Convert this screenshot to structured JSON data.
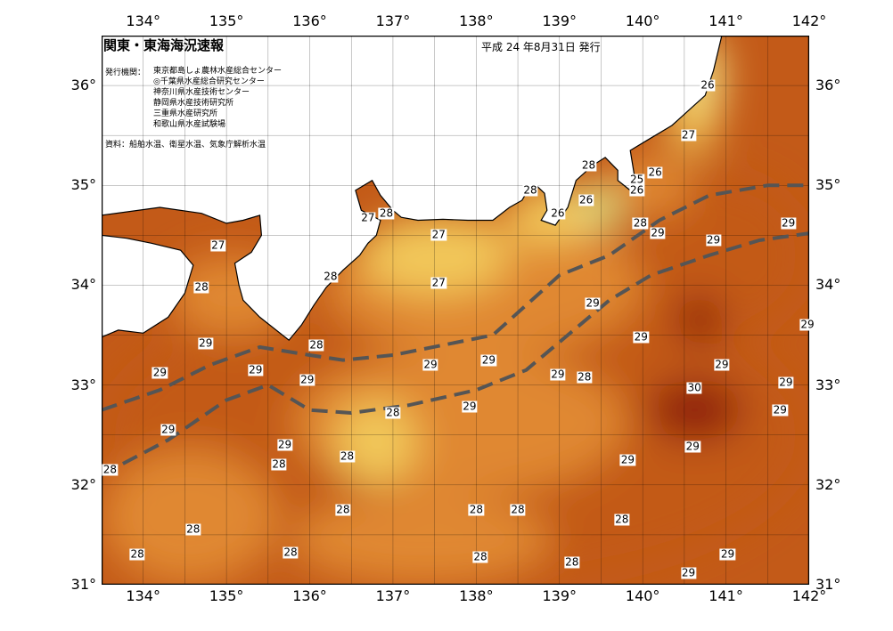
{
  "title": "関東・東海海況速報",
  "issue_date": "平成 24 年8月31日 発行",
  "issuer_label": "発行機関：",
  "issuers": [
    "東京都島しょ農林水産総合センター",
    "◎千葉県水産総合研究センター",
    "神奈川県水産技術センター",
    "静岡県水産技術研究所",
    "三重県水産研究所",
    "和歌山県水産試験場"
  ],
  "sources": "資料：船舶水温、衛星水温、気象庁解析水温",
  "axes": {
    "lon_min": 133.5,
    "lon_max": 142.0,
    "lat_min": 31.0,
    "lat_max": 36.5,
    "lon_ticks": [
      {
        "value": 134,
        "label": "134°"
      },
      {
        "value": 135,
        "label": "135°"
      },
      {
        "value": 136,
        "label": "136°"
      },
      {
        "value": 137,
        "label": "137°"
      },
      {
        "value": 138,
        "label": "138°"
      },
      {
        "value": 139,
        "label": "139°"
      },
      {
        "value": 140,
        "label": "140°"
      },
      {
        "value": 141,
        "label": "141°"
      },
      {
        "value": 142,
        "label": "142°"
      }
    ],
    "lat_ticks": [
      {
        "value": 31,
        "label": "31°"
      },
      {
        "value": 32,
        "label": "32°"
      },
      {
        "value": 33,
        "label": "33°"
      },
      {
        "value": 34,
        "label": "34°"
      },
      {
        "value": 35,
        "label": "35°"
      },
      {
        "value": 36,
        "label": "36°"
      }
    ],
    "grid_step_deg": 0.5
  },
  "colors": {
    "land": "#ffffff",
    "t25": "#a8f08a",
    "t26": "#f6f090",
    "t27": "#f2c85a",
    "t28": "#e08830",
    "t29": "#c35a18",
    "t30": "#8e1a08",
    "current_axis": "#555555"
  },
  "coastline_lonlat": [
    [
      133.5,
      33.48
    ],
    [
      133.7,
      33.55
    ],
    [
      134.0,
      33.52
    ],
    [
      134.3,
      33.68
    ],
    [
      134.5,
      33.92
    ],
    [
      134.6,
      34.2
    ],
    [
      134.45,
      34.35
    ],
    [
      134.1,
      34.42
    ],
    [
      133.8,
      34.47
    ],
    [
      133.5,
      34.5
    ],
    [
      133.5,
      34.7
    ],
    [
      134.2,
      34.78
    ],
    [
      134.7,
      34.72
    ],
    [
      135.0,
      34.62
    ],
    [
      135.2,
      34.65
    ],
    [
      135.4,
      34.7
    ],
    [
      135.42,
      34.5
    ],
    [
      135.3,
      34.33
    ],
    [
      135.1,
      34.22
    ],
    [
      135.15,
      34.0
    ],
    [
      135.2,
      33.85
    ],
    [
      135.4,
      33.68
    ],
    [
      135.75,
      33.45
    ],
    [
      135.9,
      33.6
    ],
    [
      136.05,
      33.8
    ],
    [
      136.2,
      33.98
    ],
    [
      136.4,
      34.15
    ],
    [
      136.6,
      34.3
    ],
    [
      136.7,
      34.42
    ],
    [
      136.8,
      34.5
    ],
    [
      136.85,
      34.65
    ],
    [
      136.62,
      34.75
    ],
    [
      136.55,
      34.95
    ],
    [
      136.75,
      35.05
    ],
    [
      136.85,
      34.9
    ],
    [
      137.0,
      34.75
    ],
    [
      137.1,
      34.68
    ],
    [
      137.3,
      34.65
    ],
    [
      137.6,
      34.66
    ],
    [
      137.9,
      34.65
    ],
    [
      138.2,
      34.65
    ],
    [
      138.4,
      34.78
    ],
    [
      138.55,
      34.85
    ],
    [
      138.62,
      34.95
    ],
    [
      138.72,
      35.0
    ],
    [
      138.82,
      34.92
    ],
    [
      138.85,
      34.75
    ],
    [
      138.78,
      34.65
    ],
    [
      138.95,
      34.6
    ],
    [
      139.1,
      34.78
    ],
    [
      139.2,
      35.05
    ],
    [
      139.4,
      35.2
    ],
    [
      139.55,
      35.28
    ],
    [
      139.7,
      35.15
    ],
    [
      139.7,
      35.05
    ],
    [
      139.85,
      34.95
    ],
    [
      139.9,
      35.1
    ],
    [
      139.85,
      35.35
    ],
    [
      140.05,
      35.45
    ],
    [
      140.35,
      35.6
    ],
    [
      140.55,
      35.75
    ],
    [
      140.75,
      35.9
    ],
    [
      140.85,
      36.15
    ],
    [
      140.95,
      36.5
    ]
  ],
  "current_axes_lonlat": [
    [
      [
        133.5,
        32.75
      ],
      [
        134.2,
        32.95
      ],
      [
        134.8,
        33.2
      ],
      [
        135.4,
        33.38
      ],
      [
        136.0,
        33.3
      ],
      [
        136.4,
        33.25
      ],
      [
        137.0,
        33.3
      ],
      [
        137.6,
        33.4
      ],
      [
        138.2,
        33.5
      ],
      [
        138.6,
        33.8
      ],
      [
        139.0,
        34.1
      ],
      [
        139.6,
        34.3
      ],
      [
        140.2,
        34.65
      ],
      [
        140.8,
        34.9
      ],
      [
        141.5,
        35.0
      ],
      [
        142.0,
        35.0
      ]
    ],
    [
      [
        133.5,
        32.1
      ],
      [
        134.3,
        32.45
      ],
      [
        135.0,
        32.85
      ],
      [
        135.5,
        33.0
      ],
      [
        136.0,
        32.75
      ],
      [
        136.5,
        32.72
      ],
      [
        137.2,
        32.8
      ],
      [
        138.0,
        32.95
      ],
      [
        138.6,
        33.15
      ],
      [
        139.1,
        33.5
      ],
      [
        139.6,
        33.85
      ],
      [
        140.1,
        34.1
      ],
      [
        140.8,
        34.3
      ],
      [
        141.4,
        34.45
      ],
      [
        142.0,
        34.52
      ]
    ]
  ],
  "temperature_labels": [
    {
      "text": "26",
      "lon": 140.78,
      "lat": 36.0
    },
    {
      "text": "27",
      "lon": 140.55,
      "lat": 35.5
    },
    {
      "text": "28",
      "lon": 139.35,
      "lat": 35.2
    },
    {
      "text": "26",
      "lon": 140.15,
      "lat": 35.13
    },
    {
      "text": "25",
      "lon": 139.93,
      "lat": 35.06
    },
    {
      "text": "26",
      "lon": 139.93,
      "lat": 34.95
    },
    {
      "text": "28",
      "lon": 138.65,
      "lat": 34.95
    },
    {
      "text": "26",
      "lon": 139.32,
      "lat": 34.85
    },
    {
      "text": "26",
      "lon": 138.98,
      "lat": 34.72
    },
    {
      "text": "27",
      "lon": 136.7,
      "lat": 34.67
    },
    {
      "text": "28",
      "lon": 136.92,
      "lat": 34.72
    },
    {
      "text": "28",
      "lon": 139.97,
      "lat": 34.62
    },
    {
      "text": "29",
      "lon": 140.18,
      "lat": 34.52
    },
    {
      "text": "29",
      "lon": 141.75,
      "lat": 34.62
    },
    {
      "text": "27",
      "lon": 134.9,
      "lat": 34.4
    },
    {
      "text": "27",
      "lon": 137.55,
      "lat": 34.5
    },
    {
      "text": "29",
      "lon": 140.85,
      "lat": 34.45
    },
    {
      "text": "28",
      "lon": 136.25,
      "lat": 34.08
    },
    {
      "text": "27",
      "lon": 137.55,
      "lat": 34.02
    },
    {
      "text": "28",
      "lon": 134.7,
      "lat": 33.98
    },
    {
      "text": "29",
      "lon": 139.4,
      "lat": 33.82
    },
    {
      "text": "29",
      "lon": 139.98,
      "lat": 33.48
    },
    {
      "text": "29",
      "lon": 142.05,
      "lat": 33.6
    },
    {
      "text": "29",
      "lon": 134.75,
      "lat": 33.42
    },
    {
      "text": "28",
      "lon": 136.08,
      "lat": 33.4
    },
    {
      "text": "29",
      "lon": 138.15,
      "lat": 33.25
    },
    {
      "text": "29",
      "lon": 137.45,
      "lat": 33.2
    },
    {
      "text": "29",
      "lon": 134.2,
      "lat": 33.12
    },
    {
      "text": "29",
      "lon": 135.35,
      "lat": 33.15
    },
    {
      "text": "29",
      "lon": 135.97,
      "lat": 33.05
    },
    {
      "text": "29",
      "lon": 138.98,
      "lat": 33.1
    },
    {
      "text": "28",
      "lon": 139.3,
      "lat": 33.08
    },
    {
      "text": "29",
      "lon": 140.95,
      "lat": 33.2
    },
    {
      "text": "29",
      "lon": 141.72,
      "lat": 33.02
    },
    {
      "text": "30",
      "lon": 140.62,
      "lat": 32.97
    },
    {
      "text": "29",
      "lon": 141.65,
      "lat": 32.75
    },
    {
      "text": "28",
      "lon": 137.0,
      "lat": 32.72
    },
    {
      "text": "29",
      "lon": 137.92,
      "lat": 32.78
    },
    {
      "text": "29",
      "lon": 134.3,
      "lat": 32.55
    },
    {
      "text": "29",
      "lon": 135.7,
      "lat": 32.4
    },
    {
      "text": "28",
      "lon": 133.6,
      "lat": 32.15
    },
    {
      "text": "28",
      "lon": 135.63,
      "lat": 32.2
    },
    {
      "text": "28",
      "lon": 136.45,
      "lat": 32.28
    },
    {
      "text": "29",
      "lon": 139.82,
      "lat": 32.25
    },
    {
      "text": "29",
      "lon": 140.6,
      "lat": 32.38
    },
    {
      "text": "28",
      "lon": 136.4,
      "lat": 31.75
    },
    {
      "text": "28",
      "lon": 138.0,
      "lat": 31.75
    },
    {
      "text": "28",
      "lon": 138.5,
      "lat": 31.75
    },
    {
      "text": "28",
      "lon": 134.6,
      "lat": 31.55
    },
    {
      "text": "28",
      "lon": 139.75,
      "lat": 31.65
    },
    {
      "text": "28",
      "lon": 133.93,
      "lat": 31.3
    },
    {
      "text": "28",
      "lon": 135.77,
      "lat": 31.32
    },
    {
      "text": "28",
      "lon": 138.05,
      "lat": 31.28
    },
    {
      "text": "29",
      "lon": 141.02,
      "lat": 31.3
    },
    {
      "text": "28",
      "lon": 139.15,
      "lat": 31.22
    },
    {
      "text": "29",
      "lon": 140.55,
      "lat": 31.12
    }
  ],
  "temperature_regions": [
    {
      "level": "t29",
      "lon": [
        133.5,
        142.0
      ],
      "lat": [
        31.0,
        34.0
      ]
    },
    {
      "level": "t29",
      "lon": [
        139.8,
        142.0
      ],
      "lat": [
        33.5,
        35.1
      ]
    },
    {
      "level": "t28",
      "lon": [
        135.8,
        139.8
      ],
      "lat": [
        31.9,
        33.35
      ]
    },
    {
      "level": "t28",
      "lon": [
        133.5,
        135.6
      ],
      "lat": [
        31.0,
        32.35
      ]
    },
    {
      "level": "t28",
      "lon": [
        135.8,
        138.9
      ],
      "lat": [
        31.0,
        31.9
      ]
    },
    {
      "level": "t28",
      "lon": [
        136.2,
        140.0
      ],
      "lat": [
        33.3,
        34.7
      ]
    },
    {
      "level": "t28",
      "lon": [
        134.3,
        135.8
      ],
      "lat": [
        33.5,
        34.3
      ]
    },
    {
      "level": "t28",
      "lon": [
        139.6,
        140.6
      ],
      "lat": [
        34.7,
        35.3
      ]
    },
    {
      "level": "t27",
      "lon": [
        136.6,
        138.4
      ],
      "lat": [
        33.9,
        34.7
      ]
    },
    {
      "level": "t27",
      "lon": [
        138.4,
        139.3
      ],
      "lat": [
        34.4,
        35.0
      ]
    },
    {
      "level": "t27",
      "lon": [
        140.3,
        140.9
      ],
      "lat": [
        35.3,
        36.2
      ]
    },
    {
      "level": "t27",
      "lon": [
        136.3,
        137.3
      ],
      "lat": [
        32.0,
        32.85
      ]
    },
    {
      "level": "t26",
      "lon": [
        139.2,
        139.7
      ],
      "lat": [
        34.55,
        35.0
      ]
    },
    {
      "level": "t26",
      "lon": [
        140.55,
        140.95
      ],
      "lat": [
        35.7,
        36.5
      ]
    },
    {
      "level": "t25",
      "lon": [
        139.4,
        139.65
      ],
      "lat": [
        34.65,
        34.9
      ]
    },
    {
      "level": "t30",
      "lon": [
        140.05,
        141.2
      ],
      "lat": [
        32.45,
        33.05
      ]
    },
    {
      "level": "t30",
      "lon": [
        140.4,
        140.95
      ],
      "lat": [
        33.4,
        33.9
      ]
    }
  ]
}
